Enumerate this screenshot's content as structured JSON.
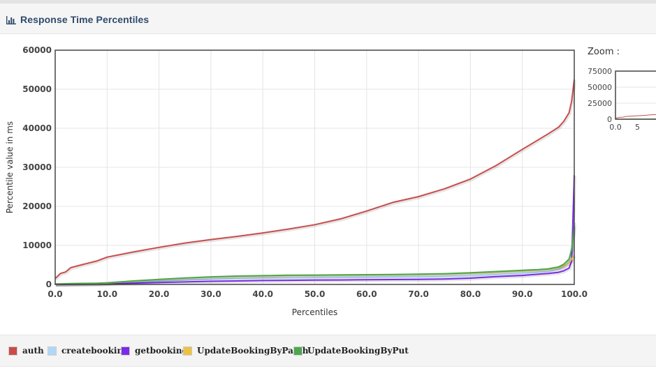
{
  "panel": {
    "title": "Response Time Percentiles",
    "icon": "bar-chart-icon"
  },
  "zoom": {
    "label": "Zoom :",
    "y_ticks": [
      "75000",
      "50000",
      "25000",
      "0"
    ],
    "x_ticks": [
      "0.0",
      "5"
    ]
  },
  "colors": {
    "auth": "#cb4b4b",
    "createbooking": "#afd8f8",
    "getbooking": "#7c2ae8",
    "UpdateBookingByPatch": "#edc240",
    "UpdateBookingByPut": "#4da74d"
  },
  "chart_data": {
    "type": "line",
    "title": "",
    "xlabel": "Percentiles",
    "ylabel": "Percentile value in ms",
    "xlim": [
      0,
      100
    ],
    "ylim": [
      0,
      60000
    ],
    "x_ticks": [
      "0.0",
      "10.0",
      "20.0",
      "30.0",
      "40.0",
      "50.0",
      "60.0",
      "70.0",
      "80.0",
      "90.0",
      "100.0"
    ],
    "y_ticks": [
      "0",
      "10000",
      "20000",
      "30000",
      "40000",
      "50000",
      "60000"
    ],
    "grid": true,
    "legend_position": "bottom",
    "x": [
      0,
      1,
      2,
      3,
      5,
      8,
      10,
      15,
      20,
      25,
      30,
      35,
      40,
      45,
      50,
      55,
      60,
      65,
      70,
      75,
      80,
      85,
      90,
      93,
      95,
      97,
      98,
      99,
      99.5,
      100
    ],
    "series": [
      {
        "name": "auth",
        "color": "#cb4b4b",
        "values": [
          1500,
          2800,
          3200,
          4300,
          5000,
          6000,
          7000,
          8300,
          9500,
          10600,
          11500,
          12300,
          13200,
          14200,
          15300,
          16800,
          18800,
          21000,
          22500,
          24500,
          27000,
          30500,
          34600,
          37000,
          38600,
          40300,
          41800,
          44000,
          47000,
          52500
        ]
      },
      {
        "name": "createbooking",
        "color": "#afd8f8",
        "values": [
          80,
          100,
          110,
          130,
          160,
          200,
          320,
          600,
          900,
          1100,
          1300,
          1500,
          1600,
          1650,
          1700,
          1750,
          1800,
          1850,
          1900,
          2000,
          2200,
          2500,
          2800,
          3100,
          3300,
          3900,
          4500,
          6000,
          9500,
          16000
        ]
      },
      {
        "name": "getbooking",
        "color": "#7c2ae8",
        "values": [
          20,
          30,
          40,
          50,
          70,
          100,
          150,
          300,
          500,
          650,
          800,
          900,
          1000,
          1050,
          1100,
          1150,
          1200,
          1250,
          1300,
          1400,
          1600,
          2000,
          2300,
          2600,
          2800,
          3100,
          3500,
          4200,
          6000,
          28000
        ]
      },
      {
        "name": "UpdateBookingByPatch",
        "color": "#edc240",
        "values": [
          60,
          120,
          150,
          180,
          230,
          280,
          350,
          850,
          1250,
          1600,
          1900,
          2100,
          2200,
          2300,
          2350,
          2400,
          2450,
          2500,
          2600,
          2700,
          2900,
          3200,
          3500,
          3700,
          3900,
          4300,
          4800,
          5500,
          6500,
          7500
        ]
      },
      {
        "name": "UpdateBookingByPut",
        "color": "#4da74d",
        "values": [
          100,
          150,
          180,
          210,
          260,
          320,
          420,
          900,
          1300,
          1650,
          1950,
          2150,
          2250,
          2350,
          2400,
          2450,
          2500,
          2550,
          2650,
          2750,
          3000,
          3300,
          3600,
          3800,
          4000,
          4500,
          5200,
          6500,
          9000,
          15000
        ]
      }
    ]
  }
}
